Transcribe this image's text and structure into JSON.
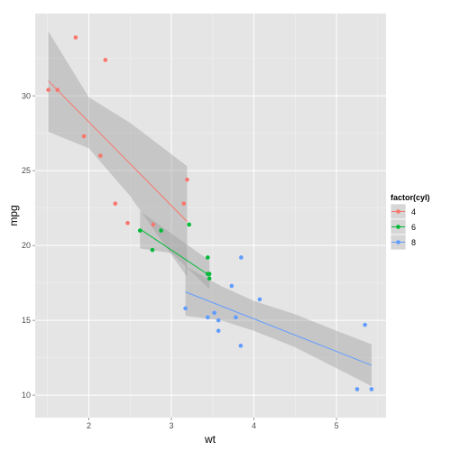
{
  "chart_data": {
    "type": "scatter",
    "xlabel": "wt",
    "ylabel": "mpg",
    "xlim": [
      1.35,
      5.6
    ],
    "ylim": [
      8.5,
      35.5
    ],
    "x_ticks": [
      2,
      3,
      4,
      5
    ],
    "y_ticks": [
      10,
      15,
      20,
      25,
      30
    ],
    "grid": true,
    "legend_position": "right",
    "legend": {
      "title": "factor(cyl)",
      "entries": [
        "4",
        "6",
        "8"
      ]
    },
    "series": [
      {
        "name": "4",
        "color": "#F8766D",
        "points": [
          [
            1.51,
            30.4
          ],
          [
            1.62,
            30.4
          ],
          [
            1.84,
            33.9
          ],
          [
            1.94,
            27.3
          ],
          [
            2.14,
            26.0
          ],
          [
            2.2,
            32.4
          ],
          [
            2.32,
            22.8
          ],
          [
            2.47,
            21.5
          ],
          [
            2.78,
            21.4
          ],
          [
            3.15,
            22.8
          ],
          [
            3.19,
            24.4
          ]
        ],
        "fit_line": [
          [
            1.51,
            31.0
          ],
          [
            3.19,
            21.6
          ]
        ],
        "ci_band": {
          "x": [
            1.51,
            2.0,
            2.5,
            3.19
          ],
          "lower": [
            27.6,
            26.5,
            23.3,
            17.9
          ],
          "upper": [
            34.3,
            29.9,
            28.2,
            25.3
          ]
        }
      },
      {
        "name": "6",
        "color": "#00BA38",
        "points": [
          [
            2.62,
            21.0
          ],
          [
            2.77,
            19.7
          ],
          [
            2.875,
            21.0
          ],
          [
            3.215,
            21.4
          ],
          [
            3.44,
            18.1
          ],
          [
            3.44,
            19.2
          ],
          [
            3.46,
            17.8
          ],
          [
            3.46,
            18.1
          ]
        ],
        "fit_line": [
          [
            2.62,
            21.1
          ],
          [
            3.46,
            18.0
          ]
        ],
        "ci_band": {
          "x": [
            2.62,
            3.0,
            3.46
          ],
          "lower": [
            19.8,
            19.5,
            17.1
          ],
          "upper": [
            22.3,
            20.8,
            19.0
          ]
        }
      },
      {
        "name": "8",
        "color": "#619CFF",
        "points": [
          [
            3.17,
            15.8
          ],
          [
            3.44,
            15.2
          ],
          [
            3.52,
            15.5
          ],
          [
            3.57,
            15.0
          ],
          [
            3.57,
            14.3
          ],
          [
            3.73,
            17.3
          ],
          [
            3.78,
            15.2
          ],
          [
            3.84,
            13.3
          ],
          [
            3.845,
            19.2
          ],
          [
            4.07,
            16.4
          ],
          [
            5.25,
            10.4
          ],
          [
            5.345,
            14.7
          ],
          [
            5.424,
            10.4
          ]
        ],
        "fit_line": [
          [
            3.17,
            16.9
          ],
          [
            5.424,
            12.0
          ]
        ],
        "ci_band": {
          "x": [
            3.17,
            3.6,
            4.0,
            4.5,
            5.0,
            5.424
          ],
          "lower": [
            15.3,
            15.0,
            14.3,
            13.2,
            11.8,
            10.6
          ],
          "upper": [
            18.6,
            17.3,
            16.3,
            15.4,
            14.3,
            13.4
          ]
        }
      }
    ]
  }
}
